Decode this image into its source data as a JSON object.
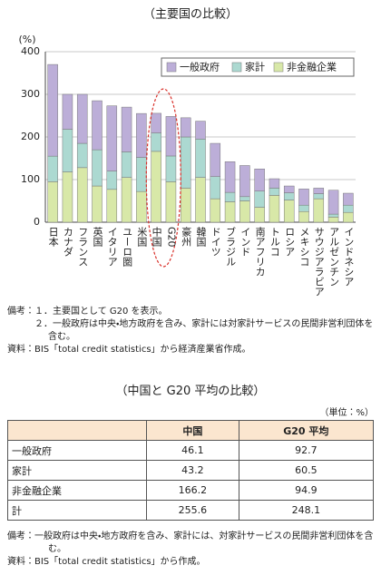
{
  "chart_data": {
    "type": "stacked-bar",
    "subtitle": "（主要国の比較）",
    "y_unit": "(%)",
    "categories": [
      "日本",
      "カナダ",
      "フランス",
      "英国",
      "イタリア",
      "ユーロ圏",
      "米国",
      "中国",
      "G20",
      "豪州",
      "韓国",
      "ドイツ",
      "ブラジル",
      "インド",
      "南アフリカ",
      "トルコ",
      "ロシア",
      "メキシコ",
      "サウジアラビア",
      "アルゼンチン",
      "インドネシア"
    ],
    "series": [
      {
        "name": "非金融企業",
        "color": "#d8e8a8",
        "values": [
          95,
          118,
          128,
          85,
          77,
          105,
          72,
          166.2,
          94.9,
          80,
          105,
          55,
          48,
          50,
          35,
          63,
          52,
          25,
          55,
          12,
          23
        ]
      },
      {
        "name": "家計",
        "color": "#acd9d1",
        "values": [
          60,
          100,
          57,
          85,
          43,
          60,
          80,
          43.2,
          60.5,
          120,
          90,
          52,
          22,
          10,
          38,
          17,
          17,
          15,
          12,
          7,
          17
        ]
      },
      {
        "name": "一般政府",
        "color": "#bcaed8",
        "values": [
          215,
          82,
          115,
          115,
          153,
          105,
          103,
          46.1,
          92.7,
          45,
          42,
          78,
          72,
          73,
          52,
          22,
          16,
          38,
          13,
          56,
          28
        ]
      }
    ],
    "ylim": [
      0,
      400
    ],
    "yticks": [
      0,
      100,
      200,
      300,
      400
    ],
    "grid": true,
    "legend": "top-right"
  },
  "chart_notes": [
    {
      "label": "備考：",
      "items": [
        "１．主要国として G20 を表示。",
        "２．一般政府は中央・地方政府を含み、家計には対家計サービスの民間非営利団体を含む。"
      ]
    },
    {
      "label": "資料：",
      "items": [
        "BIS「total credit statistics」から経済産業省作成。"
      ]
    }
  ],
  "table": {
    "title": "（中国と G20 平均の比較）",
    "unit": "（単位：%）",
    "header": [
      "",
      "中国",
      "G20 平均"
    ],
    "rows": [
      [
        "一般政府",
        "46.1",
        "92.7"
      ],
      [
        "家計",
        "43.2",
        "60.5"
      ],
      [
        "非金融企業",
        "166.2",
        "94.9"
      ],
      [
        "計",
        "255.6",
        "248.1"
      ]
    ]
  },
  "table_notes": [
    {
      "label": "備考：",
      "items": [
        "一般政府は中央・地方政府を含み、家計には、対家計サービスの民間非営利団体を含む。"
      ]
    },
    {
      "label": "資料：",
      "items": [
        "BIS「total credit statistics」から作成。"
      ]
    }
  ]
}
